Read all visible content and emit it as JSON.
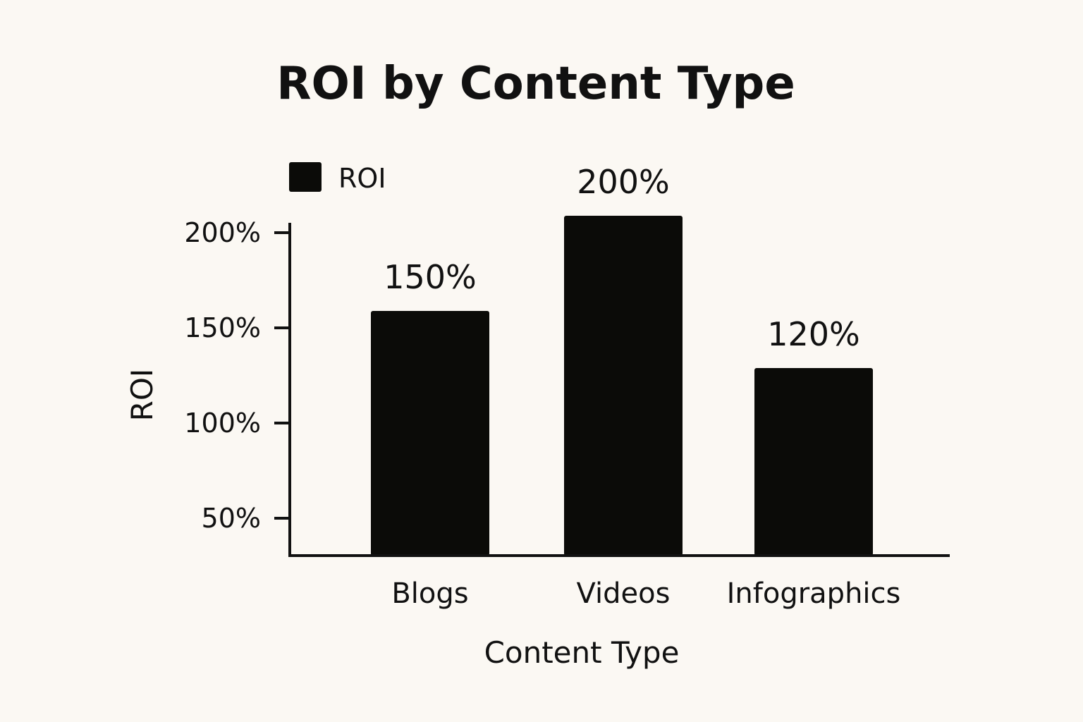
{
  "colors": {
    "background": "#fbf8f3",
    "bar": "#0b0b08",
    "axis": "#111111"
  },
  "chart_data": {
    "type": "bar",
    "title": "ROI by Content Type",
    "xlabel": "Content Type",
    "ylabel": "ROI",
    "categories": [
      "Blogs",
      "Videos",
      "Infographics"
    ],
    "series": [
      {
        "name": "ROI",
        "values": [
          150,
          200,
          120
        ],
        "data_labels": [
          "150%",
          "200%",
          "120%"
        ]
      }
    ],
    "ylim": [
      30,
      210
    ],
    "yticks": [
      50,
      100,
      150,
      200
    ],
    "ytick_labels": [
      "50%",
      "100%",
      "150%",
      "200%"
    ],
    "grid": false,
    "legend": {
      "position": "top-left",
      "entries": [
        "ROI"
      ]
    }
  }
}
